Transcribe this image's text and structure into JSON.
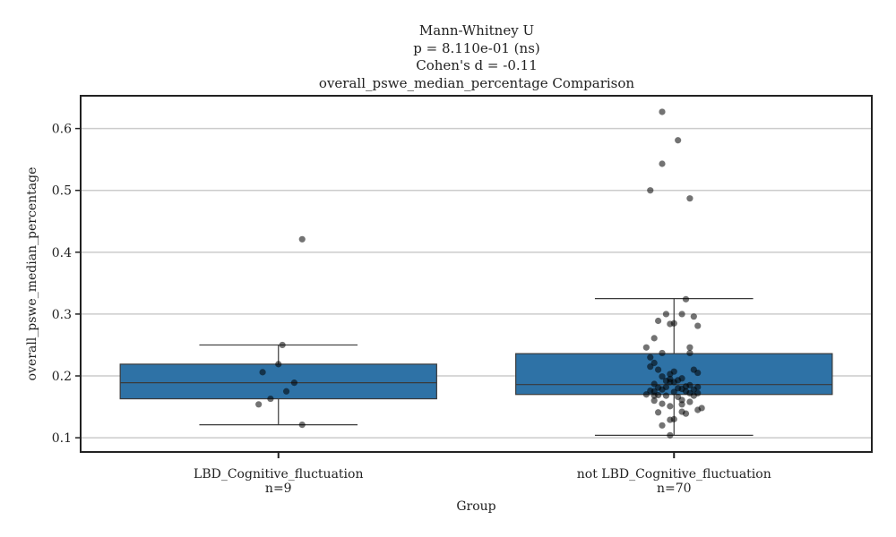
{
  "chart_data": {
    "type": "box",
    "title_lines": [
      "Mann-Whitney U",
      "p = 8.110e-01 (ns)",
      "Cohen's d = -0.11",
      "overall_pswe_median_percentage Comparison"
    ],
    "xlabel": "Group",
    "ylabel": "overall_pswe_median_percentage",
    "ylim": [
      0.077,
      0.653
    ],
    "yticks": [
      0.1,
      0.2,
      0.3,
      0.4,
      0.5,
      0.6
    ],
    "ytick_labels": [
      "0.1",
      "0.2",
      "0.3",
      "0.4",
      "0.5",
      "0.6"
    ],
    "grid": "horizontal",
    "box_color": "#2e72a6",
    "point_color": "#000000",
    "categories": [
      "LBD_Cognitive_fluctuation",
      "not LBD_Cognitive_fluctuation"
    ],
    "n_labels": [
      "n=9",
      "n=70"
    ],
    "boxes": [
      {
        "whisker_low": 0.121,
        "q1": 0.163,
        "median": 0.189,
        "q3": 0.219,
        "whisker_high": 0.25
      },
      {
        "whisker_low": 0.104,
        "q1": 0.17,
        "median": 0.186,
        "q3": 0.236,
        "whisker_high": 0.325
      }
    ],
    "points": [
      [
        [
          0.01,
          0.25
        ],
        [
          0.06,
          0.421
        ],
        [
          0.0,
          0.219
        ],
        [
          -0.04,
          0.206
        ],
        [
          0.04,
          0.189
        ],
        [
          0.02,
          0.175
        ],
        [
          -0.02,
          0.163
        ],
        [
          -0.05,
          0.154
        ],
        [
          0.06,
          0.121
        ]
      ],
      [
        [
          -0.03,
          0.627
        ],
        [
          0.01,
          0.581
        ],
        [
          -0.03,
          0.543
        ],
        [
          -0.06,
          0.5
        ],
        [
          0.04,
          0.487
        ],
        [
          0.03,
          0.324
        ],
        [
          0.05,
          0.296
        ],
        [
          -0.02,
          0.3
        ],
        [
          0.02,
          0.3
        ],
        [
          0.06,
          0.281
        ],
        [
          -0.04,
          0.289
        ],
        [
          0.0,
          0.285
        ],
        [
          -0.01,
          0.284
        ],
        [
          -0.05,
          0.261
        ],
        [
          -0.07,
          0.246
        ],
        [
          0.04,
          0.246
        ],
        [
          0.04,
          0.237
        ],
        [
          -0.03,
          0.237
        ],
        [
          -0.06,
          0.23
        ],
        [
          -0.05,
          0.221
        ],
        [
          -0.06,
          0.215
        ],
        [
          -0.04,
          0.21
        ],
        [
          0.05,
          0.21
        ],
        [
          0.06,
          0.205
        ],
        [
          0.0,
          0.207
        ],
        [
          -0.01,
          0.203
        ],
        [
          -0.03,
          0.199
        ],
        [
          0.02,
          0.196
        ],
        [
          -0.01,
          0.195
        ],
        [
          0.01,
          0.193
        ],
        [
          -0.02,
          0.192
        ],
        [
          0.0,
          0.19
        ],
        [
          -0.01,
          0.19
        ],
        [
          -0.05,
          0.187
        ],
        [
          0.04,
          0.185
        ],
        [
          0.03,
          0.183
        ],
        [
          -0.02,
          0.182
        ],
        [
          0.06,
          0.182
        ],
        [
          -0.04,
          0.181
        ],
        [
          0.01,
          0.18
        ],
        [
          0.02,
          0.179
        ],
        [
          0.05,
          0.178
        ],
        [
          -0.03,
          0.178
        ],
        [
          -0.06,
          0.176
        ],
        [
          -0.05,
          0.175
        ],
        [
          0.03,
          0.175
        ],
        [
          0.0,
          0.174
        ],
        [
          0.04,
          0.172
        ],
        [
          0.06,
          0.172
        ],
        [
          -0.07,
          0.17
        ],
        [
          -0.04,
          0.169
        ],
        [
          -0.05,
          0.168
        ],
        [
          -0.02,
          0.168
        ],
        [
          0.05,
          0.168
        ],
        [
          0.01,
          0.166
        ],
        [
          0.04,
          0.158
        ],
        [
          0.02,
          0.154
        ],
        [
          -0.03,
          0.155
        ],
        [
          -0.01,
          0.151
        ],
        [
          0.07,
          0.148
        ],
        [
          0.06,
          0.145
        ],
        [
          -0.04,
          0.141
        ],
        [
          0.02,
          0.142
        ],
        [
          0.03,
          0.139
        ],
        [
          0.0,
          0.13
        ],
        [
          -0.01,
          0.129
        ],
        [
          -0.03,
          0.12
        ],
        [
          -0.05,
          0.16
        ],
        [
          0.02,
          0.161
        ],
        [
          -0.01,
          0.104
        ]
      ]
    ]
  }
}
